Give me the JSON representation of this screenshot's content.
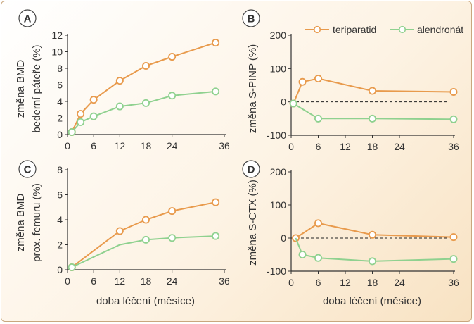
{
  "colors": {
    "teriparatid": "#e89a4c",
    "alendronat": "#8fd18f",
    "axis": "#333333"
  },
  "legend": {
    "teriparatid": "teriparatid",
    "alendronat": "alendronát"
  },
  "xlabel": "doba léčení (měsíce)",
  "chart_data": [
    {
      "panel": "A",
      "type": "line",
      "ylabel_line1": "změna BMD",
      "ylabel_line2": "bederní páteře (%)",
      "xlim": [
        0,
        36
      ],
      "ylim": [
        0,
        12
      ],
      "xticks": [
        "0",
        "6",
        "12",
        "18",
        "24",
        "36"
      ],
      "yticks": [
        "0",
        "2",
        "4",
        "6",
        "8",
        "10",
        "12"
      ],
      "series": [
        {
          "name": "teriparatid",
          "x": [
            1,
            3,
            6,
            12,
            18,
            24,
            34
          ],
          "y": [
            0.3,
            2.5,
            4.2,
            6.5,
            8.3,
            9.4,
            11.1
          ],
          "markers": [
            true,
            true,
            true,
            true,
            true,
            true,
            true
          ]
        },
        {
          "name": "alendronát",
          "x": [
            1,
            3,
            6,
            12,
            18,
            24,
            34
          ],
          "y": [
            0.3,
            1.5,
            2.2,
            3.4,
            3.8,
            4.7,
            5.2
          ],
          "markers": [
            true,
            true,
            true,
            true,
            true,
            true,
            true
          ]
        }
      ]
    },
    {
      "panel": "B",
      "type": "line",
      "ylabel": "změna S-PINP (%)",
      "xlim": [
        0,
        36
      ],
      "ylim": [
        -100,
        200
      ],
      "xticks": [
        "0",
        "6",
        "12",
        "18",
        "24",
        "36"
      ],
      "yticks": [
        "-100",
        "0",
        "100",
        "200"
      ],
      "zero_line": true,
      "series": [
        {
          "name": "teriparatid",
          "x": [
            0.5,
            2.5,
            6,
            18,
            36
          ],
          "y": [
            -5,
            60,
            70,
            33,
            30
          ],
          "markers": [
            true,
            true,
            true,
            true,
            true
          ]
        },
        {
          "name": "alendronát",
          "x": [
            0.5,
            6,
            18,
            36
          ],
          "y": [
            -5,
            -50,
            -50,
            -52
          ],
          "markers": [
            true,
            true,
            true,
            true
          ]
        }
      ]
    },
    {
      "panel": "C",
      "type": "line",
      "ylabel_line1": "změna BMD",
      "ylabel_line2": "prox. femuru (%)",
      "xlim": [
        0,
        36
      ],
      "ylim": [
        0,
        8
      ],
      "xticks": [
        "0",
        "6",
        "12",
        "18",
        "24",
        "36"
      ],
      "yticks": [
        "0",
        "2",
        "4",
        "6",
        "8"
      ],
      "series": [
        {
          "name": "teriparatid",
          "x": [
            1,
            12,
            18,
            24,
            34
          ],
          "y": [
            0.2,
            3.1,
            4.0,
            4.7,
            5.4
          ],
          "markers": [
            true,
            true,
            true,
            true,
            true
          ]
        },
        {
          "name": "alendronát",
          "x": [
            1,
            12,
            18,
            24,
            34
          ],
          "y": [
            0.2,
            2.0,
            2.4,
            2.55,
            2.7
          ],
          "markers": [
            true,
            false,
            true,
            true,
            true
          ]
        }
      ]
    },
    {
      "panel": "D",
      "type": "line",
      "ylabel": "změna S-CTX (%)",
      "xlim": [
        0,
        36
      ],
      "ylim": [
        -100,
        200
      ],
      "xticks": [
        "0",
        "6",
        "12",
        "18",
        "24",
        "36"
      ],
      "yticks": [
        "-100",
        "0",
        "100",
        "200"
      ],
      "zero_line": true,
      "series": [
        {
          "name": "teriparatid",
          "x": [
            1,
            6,
            18,
            36
          ],
          "y": [
            0,
            45,
            10,
            3
          ],
          "markers": [
            true,
            true,
            true,
            true
          ]
        },
        {
          "name": "alendronát",
          "x": [
            1,
            2.5,
            6,
            18,
            36
          ],
          "y": [
            0,
            -50,
            -60,
            -70,
            -63
          ],
          "markers": [
            false,
            true,
            true,
            true,
            true
          ]
        }
      ]
    }
  ]
}
